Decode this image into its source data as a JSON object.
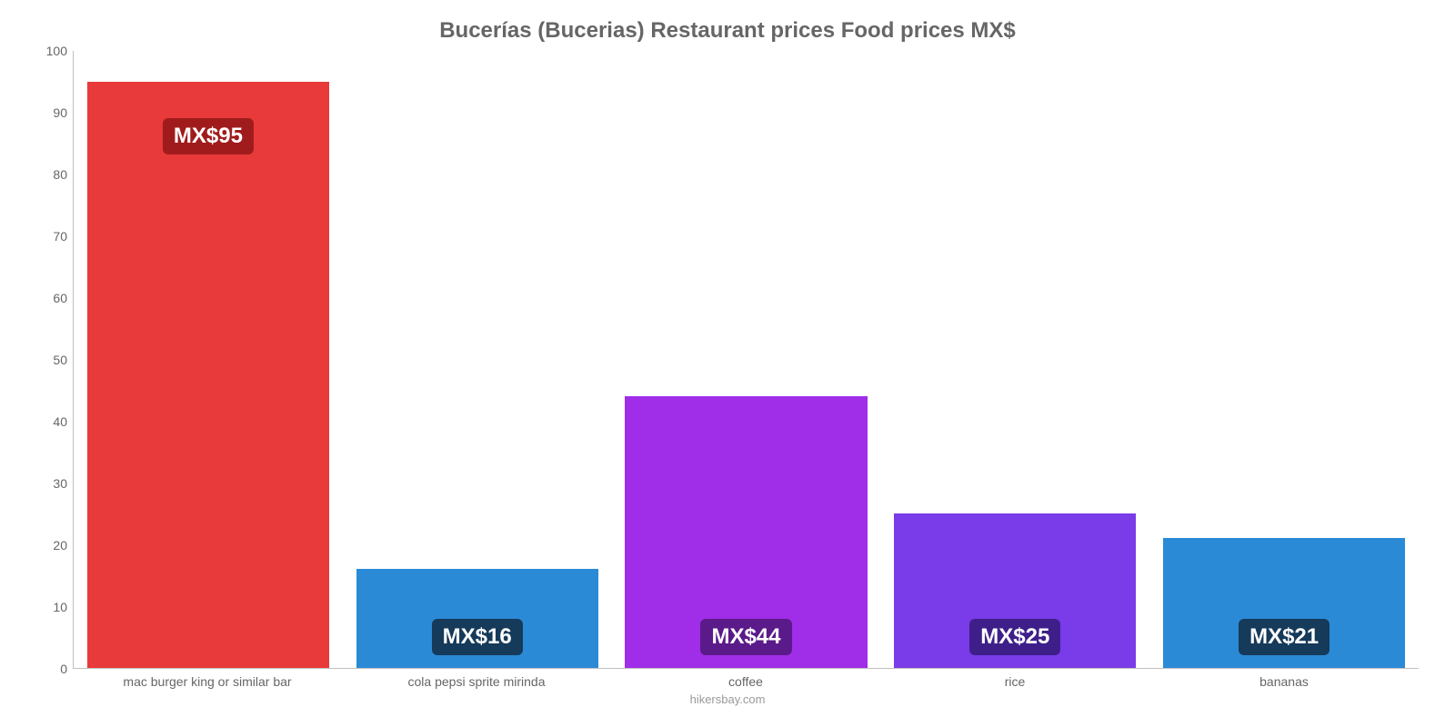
{
  "chart": {
    "type": "bar",
    "title": "Bucerías (Bucerias) Restaurant prices Food prices MX$",
    "title_fontsize": 24,
    "title_color": "#666666",
    "background_color": "#ffffff",
    "axis_color": "#c0c0c0",
    "tick_color": "#666666",
    "tick_fontsize": 14,
    "ylim": [
      0,
      100
    ],
    "ytick_step": 10,
    "yticks": [
      0,
      10,
      20,
      30,
      40,
      50,
      60,
      70,
      80,
      90,
      100
    ],
    "bar_width_pct": 18,
    "bar_gap_pct": 2,
    "categories": [
      "mac burger king or similar bar",
      "cola pepsi sprite mirinda",
      "coffee",
      "rice",
      "bananas"
    ],
    "values": [
      95,
      16,
      44,
      25,
      21
    ],
    "bar_colors": [
      "#e83a3a",
      "#2b8ad6",
      "#a02de8",
      "#7a3be8",
      "#2b8ad6"
    ],
    "value_labels": [
      "MX$95",
      "MX$16",
      "MX$44",
      "MX$25",
      "MX$21"
    ],
    "value_label_fontsize": 24,
    "value_label_bg": {
      "#e83a3a": "#a01c1c",
      "#2b8ad6": "#153a5a",
      "#a02de8": "#5a1a8a",
      "#7a3be8": "#3e1f8a"
    },
    "value_label_offsets": [
      40,
      -14,
      -14,
      -14,
      -14
    ],
    "footer": "hikersbay.com",
    "footer_color": "#999999",
    "footer_fontsize": 13
  }
}
